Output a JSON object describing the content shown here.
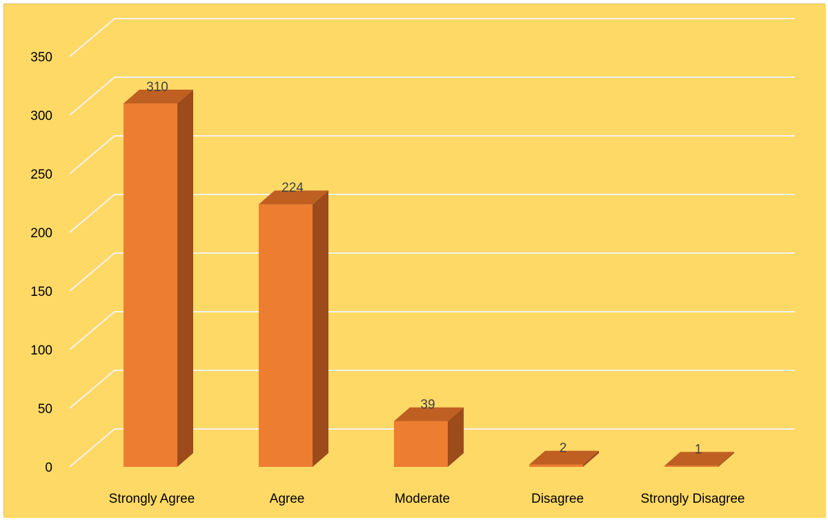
{
  "chart_data": {
    "type": "bar",
    "categories": [
      "Strongly Agree",
      "Agree",
      "Moderate",
      "Disagree",
      "Strongly Disagree"
    ],
    "values": [
      310,
      224,
      39,
      2,
      1
    ],
    "data_labels": [
      "310",
      "224",
      "39",
      "2",
      "1"
    ],
    "yticks": [
      0,
      50,
      100,
      150,
      200,
      250,
      300,
      350
    ],
    "ytick_labels": [
      "0",
      "50",
      "100",
      "150",
      "200",
      "250",
      "300",
      "350"
    ],
    "ylim": [
      0,
      350
    ],
    "title": "",
    "xlabel": "",
    "ylabel": "",
    "grid": true,
    "legend": "none",
    "style": "3d-column"
  },
  "colors": {
    "background": "#FFD966",
    "gridline": "#F2F2F2",
    "bar_front": "#ED7D31",
    "bar_side": "#9C4B1B",
    "bar_top": "#BF5F22",
    "frame": "#D9C27A"
  }
}
